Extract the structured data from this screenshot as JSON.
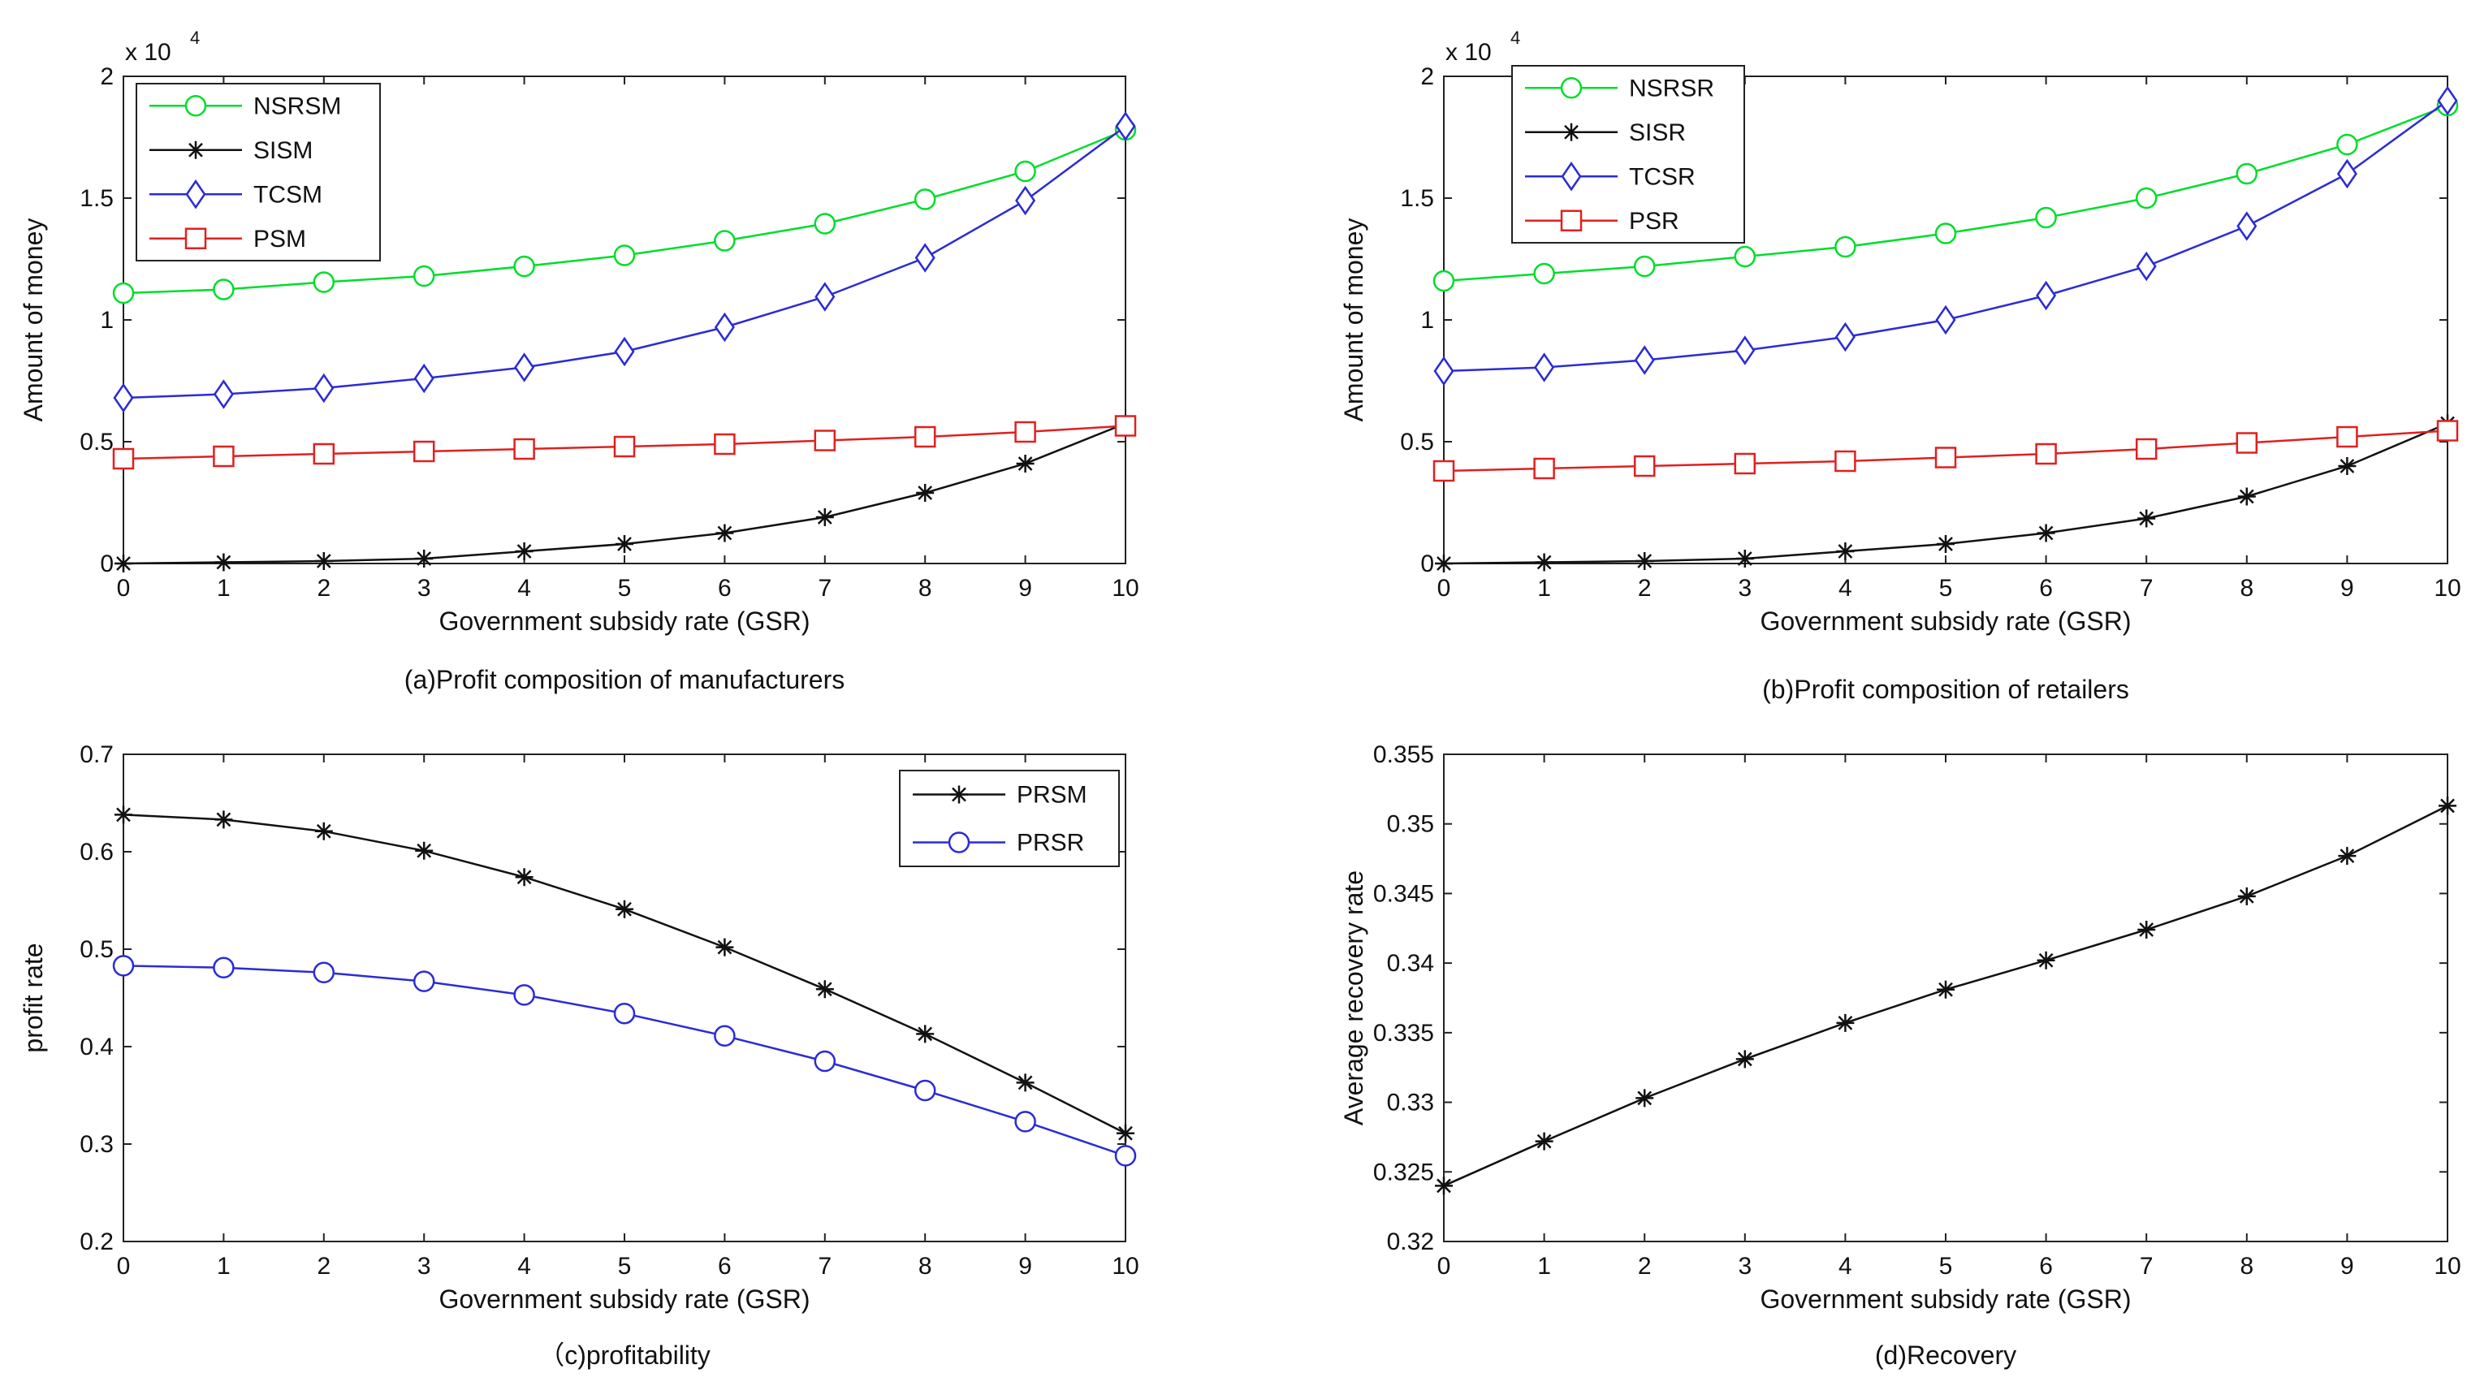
{
  "figure": {
    "x_ticks": [
      "0",
      "1",
      "2",
      "3",
      "4",
      "5",
      "6",
      "7",
      "8",
      "9",
      "10"
    ]
  },
  "chart_data": [
    {
      "panel": "a",
      "type": "line",
      "caption": "(a)Profit composition of manufacturers",
      "xlabel": "Government subsidy rate (GSR)",
      "ylabel": "Amount of money",
      "y_exponent": "x 10",
      "y_exponent_power": "4",
      "x": [
        0,
        1,
        2,
        3,
        4,
        5,
        6,
        7,
        8,
        9,
        10
      ],
      "xlim": [
        0,
        10
      ],
      "ylim": [
        0,
        2
      ],
      "yticks": [
        0,
        0.5,
        1,
        1.5,
        2
      ],
      "ytick_labels": [
        "0",
        "0.5",
        "1",
        "1.5",
        "2"
      ],
      "legend_position": "top-left",
      "series": [
        {
          "name": "NSRSM",
          "color": "#00dd2a",
          "marker": "circle",
          "values": [
            1.11,
            1.125,
            1.155,
            1.18,
            1.22,
            1.265,
            1.325,
            1.395,
            1.495,
            1.61,
            1.78
          ]
        },
        {
          "name": "SISM",
          "color": "#111111",
          "marker": "star",
          "values": [
            0.0,
            0.005,
            0.01,
            0.02,
            0.05,
            0.08,
            0.125,
            0.19,
            0.29,
            0.41,
            0.575
          ]
        },
        {
          "name": "TCSM",
          "color": "#2b2bd6",
          "marker": "diamond",
          "values": [
            0.68,
            0.695,
            0.72,
            0.76,
            0.805,
            0.87,
            0.97,
            1.095,
            1.255,
            1.49,
            1.795
          ]
        },
        {
          "name": "PSM",
          "color": "#e02020",
          "marker": "square",
          "values": [
            0.43,
            0.44,
            0.45,
            0.46,
            0.47,
            0.48,
            0.49,
            0.505,
            0.52,
            0.54,
            0.565
          ]
        }
      ]
    },
    {
      "panel": "b",
      "type": "line",
      "caption": "(b)Profit composition of retailers",
      "xlabel": "Government subsidy rate (GSR)",
      "ylabel": "Amount of money",
      "y_exponent": "x 10",
      "y_exponent_power": "4",
      "x": [
        0,
        1,
        2,
        3,
        4,
        5,
        6,
        7,
        8,
        9,
        10
      ],
      "xlim": [
        0,
        10
      ],
      "ylim": [
        0,
        2
      ],
      "yticks": [
        0,
        0.5,
        1,
        1.5,
        2
      ],
      "ytick_labels": [
        "0",
        "0.5",
        "1",
        "1.5",
        "2"
      ],
      "legend_position": "top-left",
      "series": [
        {
          "name": "NSRSR",
          "color": "#00dd2a",
          "marker": "circle",
          "values": [
            1.16,
            1.19,
            1.22,
            1.26,
            1.3,
            1.355,
            1.42,
            1.5,
            1.6,
            1.72,
            1.88
          ]
        },
        {
          "name": "SISR",
          "color": "#111111",
          "marker": "star",
          "values": [
            0.0,
            0.005,
            0.01,
            0.02,
            0.05,
            0.08,
            0.125,
            0.185,
            0.275,
            0.4,
            0.575
          ]
        },
        {
          "name": "TCSR",
          "color": "#2b2bd6",
          "marker": "diamond",
          "values": [
            0.79,
            0.805,
            0.835,
            0.875,
            0.93,
            1.0,
            1.1,
            1.22,
            1.385,
            1.6,
            1.9
          ]
        },
        {
          "name": "PSR",
          "color": "#e02020",
          "marker": "square",
          "values": [
            0.38,
            0.39,
            0.4,
            0.41,
            0.42,
            0.435,
            0.45,
            0.47,
            0.495,
            0.52,
            0.545
          ]
        }
      ]
    },
    {
      "panel": "c",
      "type": "line",
      "caption": "（c)profitability",
      "xlabel": "Government subsidy rate (GSR)",
      "ylabel": "profit rate",
      "x": [
        0,
        1,
        2,
        3,
        4,
        5,
        6,
        7,
        8,
        9,
        10
      ],
      "xlim": [
        0,
        10
      ],
      "ylim": [
        0.2,
        0.7
      ],
      "yticks": [
        0.2,
        0.3,
        0.4,
        0.5,
        0.6,
        0.7
      ],
      "ytick_labels": [
        "0.2",
        "0.3",
        "0.4",
        "0.5",
        "0.6",
        "0.7"
      ],
      "legend_position": "top-right",
      "series": [
        {
          "name": "PRSM",
          "color": "#111111",
          "marker": "star",
          "values": [
            0.638,
            0.633,
            0.621,
            0.601,
            0.574,
            0.541,
            0.502,
            0.459,
            0.413,
            0.363,
            0.311
          ]
        },
        {
          "name": "PRSR",
          "color": "#2b2bd6",
          "marker": "circle",
          "values": [
            0.483,
            0.481,
            0.476,
            0.467,
            0.453,
            0.434,
            0.411,
            0.385,
            0.355,
            0.323,
            0.288
          ]
        }
      ]
    },
    {
      "panel": "d",
      "type": "line",
      "caption": "(d)Recovery",
      "xlabel": "Government subsidy rate (GSR)",
      "ylabel": "Average recovery rate",
      "x": [
        0,
        1,
        2,
        3,
        4,
        5,
        6,
        7,
        8,
        9,
        10
      ],
      "xlim": [
        0,
        10
      ],
      "ylim": [
        0.32,
        0.355
      ],
      "yticks": [
        0.32,
        0.325,
        0.33,
        0.335,
        0.34,
        0.345,
        0.35,
        0.355
      ],
      "ytick_labels": [
        "0.32",
        "0.325",
        "0.33",
        "0.335",
        "0.34",
        "0.345",
        "0.35",
        "0.355"
      ],
      "legend_position": "none",
      "series": [
        {
          "name": "",
          "color": "#111111",
          "marker": "star",
          "values": [
            0.324,
            0.3272,
            0.3303,
            0.3331,
            0.3357,
            0.3381,
            0.3402,
            0.3424,
            0.3448,
            0.3477,
            0.3513
          ]
        }
      ]
    }
  ]
}
